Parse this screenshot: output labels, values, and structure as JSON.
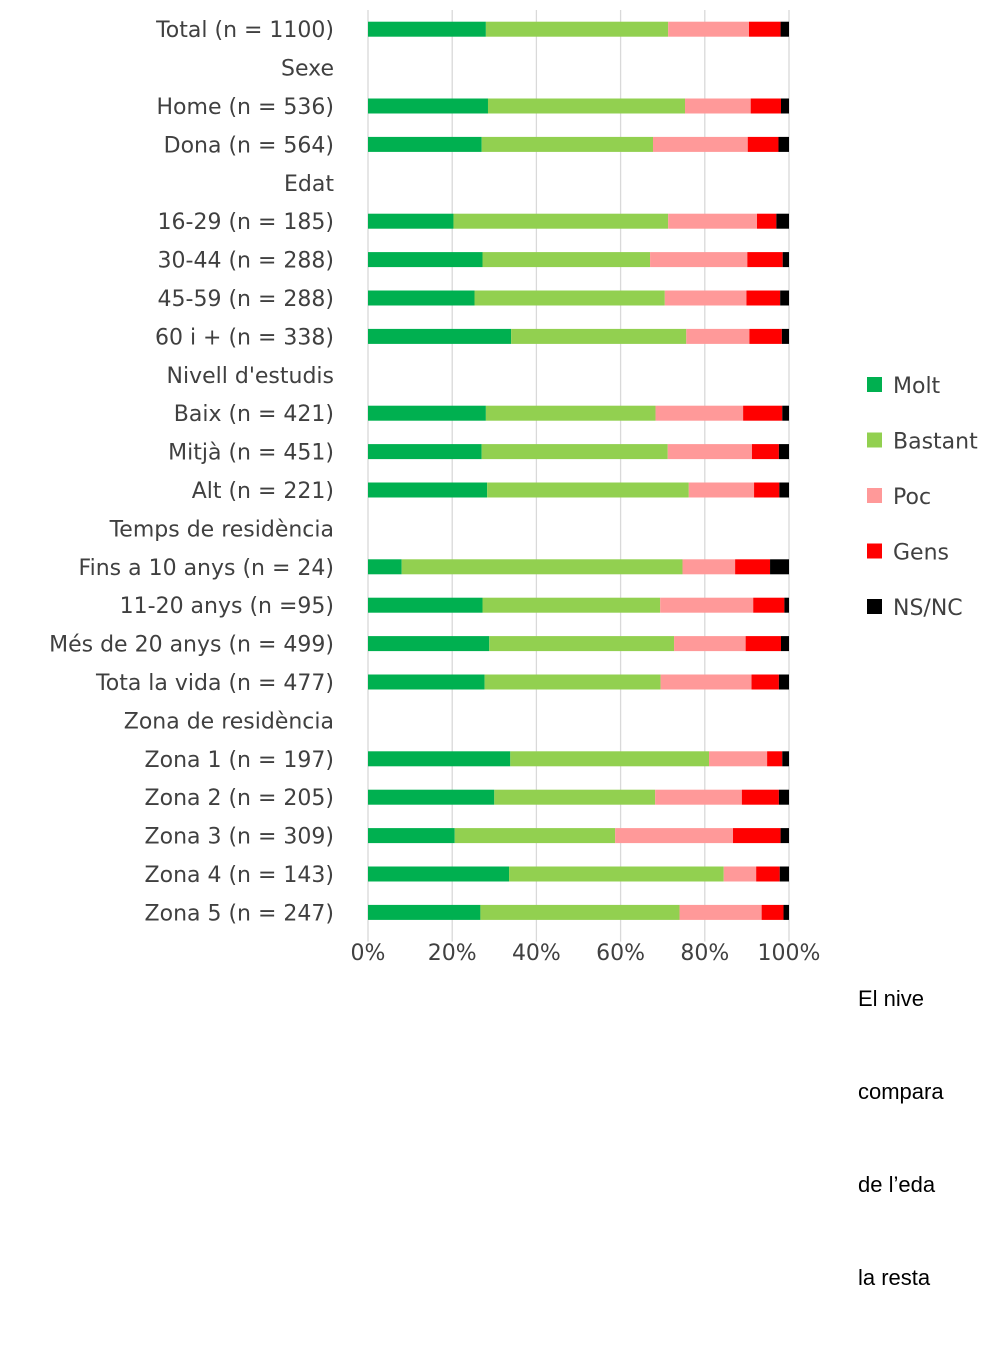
{
  "chart_data": {
    "type": "bar",
    "orientation": "horizontal",
    "stacked": true,
    "percent_stacked": true,
    "categories": [
      "Total (n = 1100)",
      "Sexe",
      "Home (n = 536)",
      "Dona (n = 564)",
      "Edat",
      "16-29 (n = 185)",
      "30-44 (n = 288)",
      "45-59 (n = 288)",
      "60 i + (n = 338)",
      "Nivell d'estudis",
      "Baix (n = 421)",
      "Mitjà (n = 451)",
      "Alt (n = 221)",
      "Temps de residència",
      "Fins a 10 anys (n = 24)",
      "11-20 anys (n =95)",
      "Més de 20 anys (n = 499)",
      "Tota la vida (n = 477)",
      "Zona de residència",
      "Zona 1 (n = 197)",
      "Zona 2 (n = 205)",
      "Zona 3 (n = 309)",
      "Zona 4 (n = 143)",
      "Zona 5 (n = 247)"
    ],
    "series": [
      {
        "name": "Molt",
        "color": "#00b050",
        "values": [
          28,
          null,
          28.5,
          27,
          null,
          20.3,
          27.2,
          25.3,
          34,
          null,
          28,
          27,
          28.3,
          null,
          8,
          27.2,
          28.8,
          27.7,
          null,
          33.8,
          30,
          20.6,
          33.5,
          26.7
        ]
      },
      {
        "name": "Bastant",
        "color": "#92d050",
        "values": [
          43.3,
          null,
          46.8,
          40.7,
          null,
          51,
          39.8,
          45.2,
          41.6,
          null,
          40.3,
          44.2,
          47.9,
          null,
          66.7,
          42.2,
          43.9,
          41.8,
          null,
          47.2,
          38.2,
          38.1,
          51,
          47.3
        ]
      },
      {
        "name": "Poc",
        "color": "#ff9999",
        "values": [
          19.2,
          null,
          15.6,
          22.5,
          null,
          21.1,
          23.1,
          19.4,
          15,
          null,
          20.8,
          20,
          15.5,
          null,
          12.5,
          22.1,
          17,
          21.6,
          null,
          13.8,
          20.6,
          28,
          7.7,
          19.5
        ]
      },
      {
        "name": "Gens",
        "color": "#ff0000",
        "values": [
          7.5,
          null,
          7.2,
          7.3,
          null,
          4.6,
          8.4,
          8,
          7.7,
          null,
          9.3,
          6.4,
          6,
          null,
          8.3,
          7.4,
          8.4,
          6.5,
          null,
          3.6,
          8.8,
          11.3,
          5.6,
          5.2
        ]
      },
      {
        "name": "NS/NC",
        "color": "#000000",
        "values": [
          2,
          null,
          1.9,
          2.5,
          null,
          3,
          1.5,
          2.1,
          1.7,
          null,
          1.6,
          2.4,
          2.3,
          null,
          4.5,
          1.1,
          1.9,
          2.4,
          null,
          1.6,
          2.4,
          2,
          2.2,
          1.3
        ]
      }
    ],
    "xlim": [
      0,
      100
    ],
    "x_ticks": [
      "0%",
      "20%",
      "40%",
      "60%",
      "80%",
      "100%"
    ],
    "grid": true,
    "legend_position": "right"
  },
  "side_note": {
    "lines": [
      "El nive",
      "compara",
      "de l’eda",
      "la resta"
    ]
  }
}
